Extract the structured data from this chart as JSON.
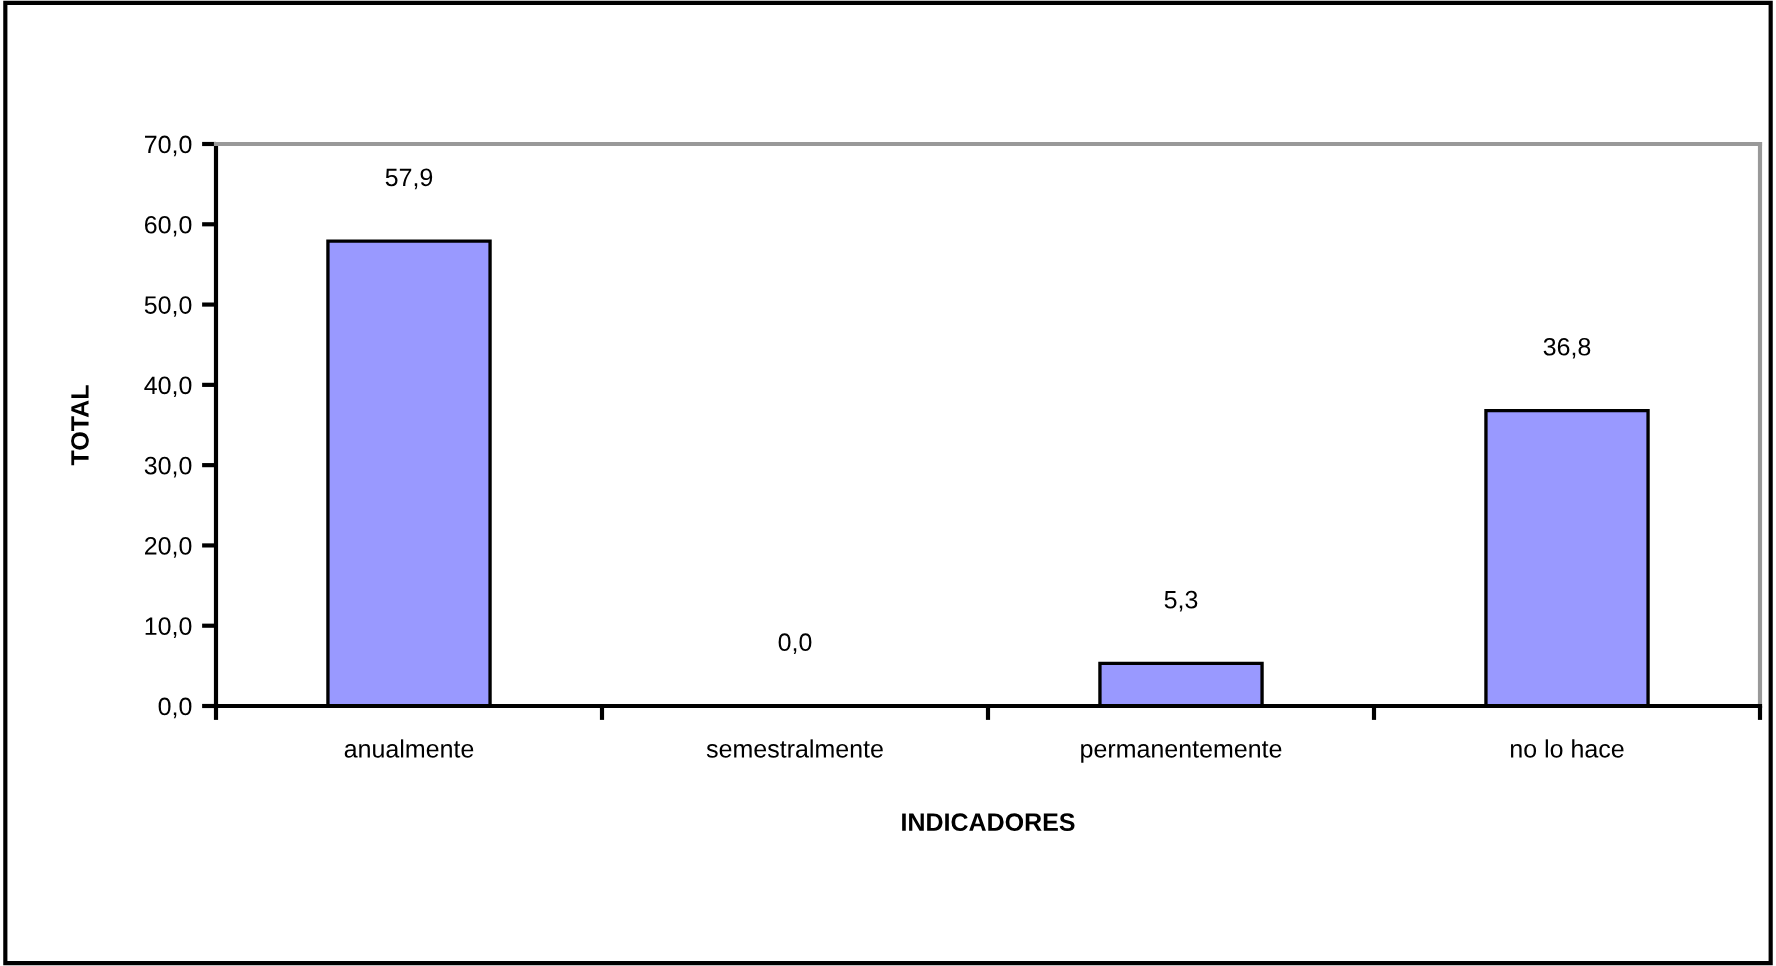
{
  "chart_data": {
    "type": "bar",
    "xlabel": "INDICADORES",
    "ylabel": "TOTAL",
    "categories": [
      "anualmente",
      "semestralmente",
      "permanentemente",
      "no lo hace"
    ],
    "values": [
      57.9,
      0.0,
      5.3,
      36.8
    ],
    "value_labels": [
      "57,9",
      "0,0",
      "5,3",
      "36,8"
    ],
    "color": "#9999ff",
    "ylim": [
      0,
      70
    ],
    "yticks": [
      {
        "value": 0,
        "label": "0,0"
      },
      {
        "value": 10,
        "label": "10,0"
      },
      {
        "value": 20,
        "label": "20,0"
      },
      {
        "value": 30,
        "label": "30,0"
      },
      {
        "value": 40,
        "label": "40,0"
      },
      {
        "value": 50,
        "label": "50,0"
      },
      {
        "value": 60,
        "label": "60,0"
      },
      {
        "value": 70,
        "label": "70,0"
      }
    ],
    "grid": false,
    "legend": false
  }
}
